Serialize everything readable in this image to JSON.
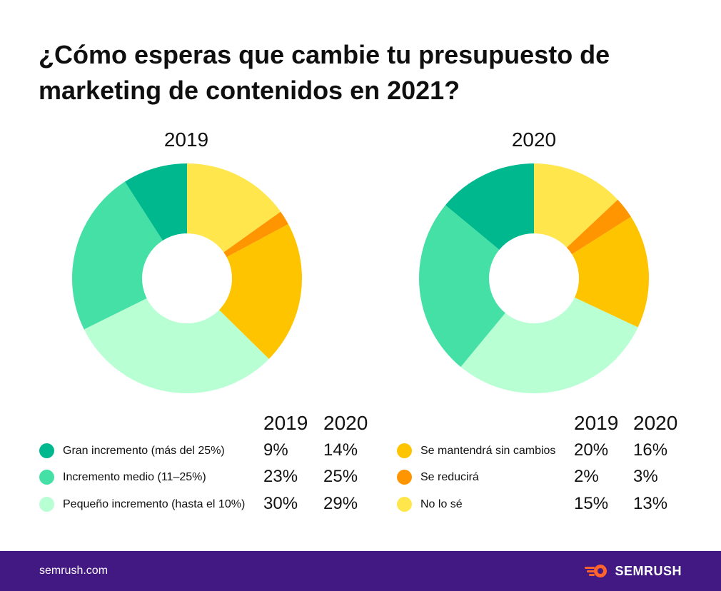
{
  "title": "¿Cómo esperas que cambie tu presupuesto de marketing de contenidos en 2021?",
  "chart_data": {
    "type": "pie",
    "donut": true,
    "categories": [
      "Gran incremento (más del 25%)",
      "Incremento medio (11–25%)",
      "Pequeño incremento (hasta el 10%)",
      "Se mantendrá sin cambios",
      "Se reducirá",
      "No lo sé"
    ],
    "colors": [
      "#00b88e",
      "#45e0a6",
      "#b8ffd4",
      "#ffc400",
      "#ff9500",
      "#ffe64d"
    ],
    "series": [
      {
        "name": "2019",
        "values": [
          9,
          23,
          30,
          20,
          2,
          15
        ]
      },
      {
        "name": "2020",
        "values": [
          14,
          25,
          29,
          16,
          3,
          13
        ]
      }
    ]
  },
  "legend": {
    "left": {
      "year_a": "2019",
      "year_b": "2020",
      "rows": [
        {
          "label": "Gran incremento (más del 25%)",
          "v2019": "9%",
          "v2020": "14%",
          "color": "#00b88e"
        },
        {
          "label": "Incremento medio (11–25%)",
          "v2019": "23%",
          "v2020": "25%",
          "color": "#45e0a6"
        },
        {
          "label": "Pequeño incremento (hasta el 10%)",
          "v2019": "30%",
          "v2020": "29%",
          "color": "#b8ffd4"
        }
      ]
    },
    "right": {
      "year_a": "2019",
      "year_b": "2020",
      "rows": [
        {
          "label": "Se mantendrá sin cambios",
          "v2019": "20%",
          "v2020": "16%",
          "color": "#ffc400"
        },
        {
          "label": "Se reducirá",
          "v2019": "2%",
          "v2020": "3%",
          "color": "#ff9500"
        },
        {
          "label": "No lo sé",
          "v2019": "15%",
          "v2020": "13%",
          "color": "#ffe64d"
        }
      ]
    }
  },
  "footer": {
    "url": "semrush.com",
    "brand": "SEMRUSH",
    "brand_icon": "semrush-fire-icon",
    "bg_color": "#421983"
  }
}
